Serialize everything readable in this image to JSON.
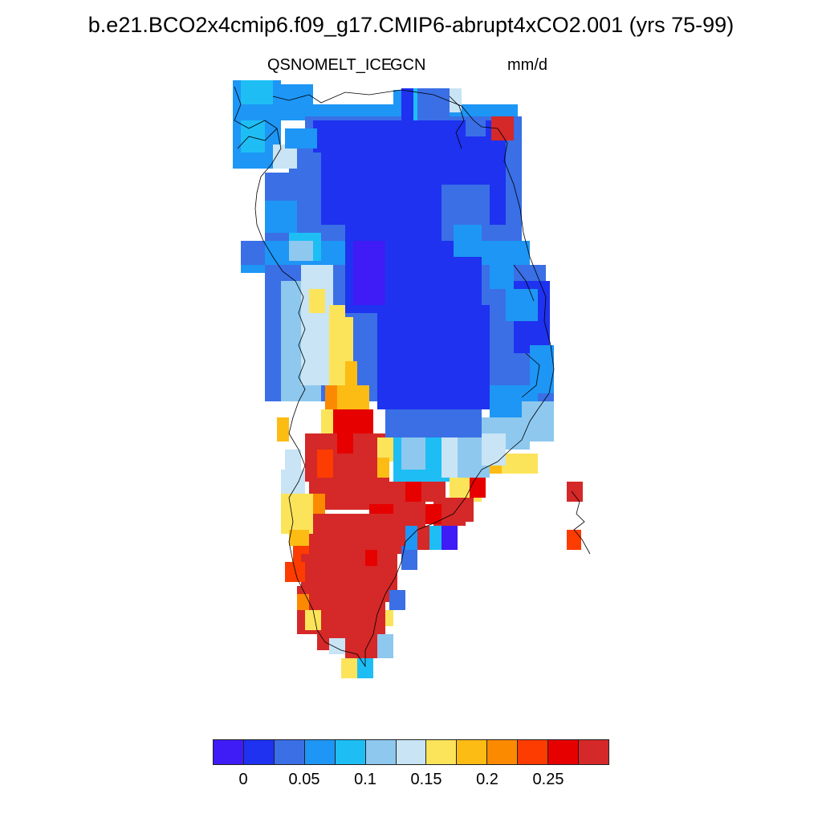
{
  "title": "b.e21.BCO2x4cmip6.f09_g17.CMIP6-abrupt4xCO2.001 (yrs 75-99)",
  "variable_left": "QSNOMELT_ICE",
  "variable_left2": "GCN",
  "units": "mm/d",
  "legend": {
    "colors": [
      "#3f1bf5",
      "#1e32f0",
      "#3a6fe6",
      "#1e96f5",
      "#1ebef5",
      "#8ec8ee",
      "#c8e4f5",
      "#fce45a",
      "#fcbc14",
      "#fc8a00",
      "#fc3c00",
      "#e60000",
      "#d52828"
    ],
    "labels": [
      "0",
      "0.05",
      "0.1",
      "0.15",
      "0.2",
      "0.25"
    ]
  }
}
